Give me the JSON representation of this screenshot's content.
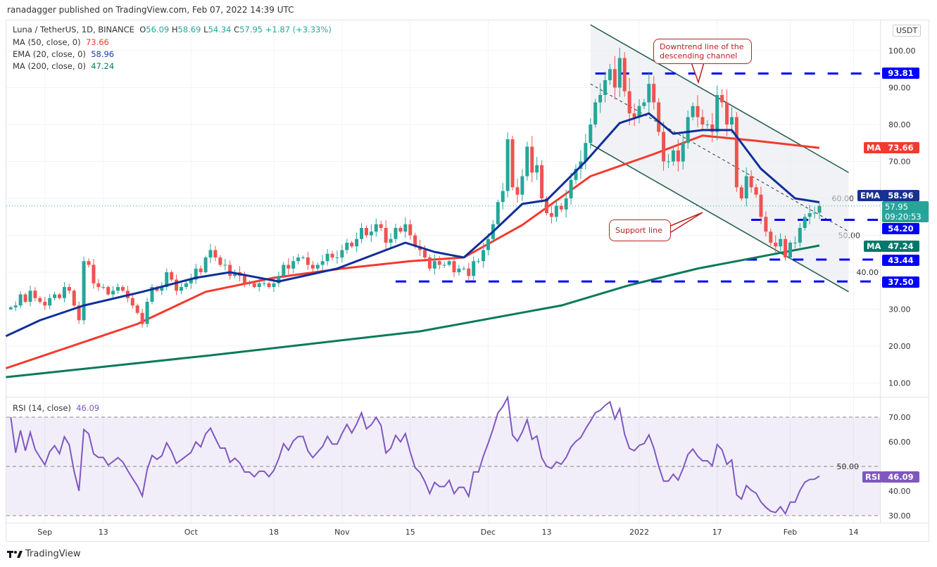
{
  "header": {
    "published": "ranadagger published on TradingView.com, Feb 07, 2022 14:39 UTC"
  },
  "legend": {
    "symbol": "Luna / TetherUS, 1D, BINANCE",
    "o_label": "O",
    "open": "56.09",
    "h_label": "H",
    "high": "58.69",
    "l_label": "L",
    "low": "54.34",
    "c_label": "C",
    "close": "57.95",
    "change": "+1.87 (+3.33%)",
    "ma50_label": "MA (50, close, 0)",
    "ma50_value": "73.66",
    "ema20_label": "EMA (20, close, 0)",
    "ema20_value": "58.96",
    "ma200_label": "MA (200, close, 0)",
    "ma200_value": "47.24",
    "rsi_label": "RSI (14, close)",
    "rsi_value": "46.09"
  },
  "currency_button": "USDT",
  "badges": {
    "level_93": "93.81",
    "ma50_tag": "MA",
    "ma50": "73.66",
    "ema_tag": "EMA",
    "ema": "58.96",
    "last": "57.95",
    "countdown": "09:20:53",
    "level_54": "54.20",
    "ma200_tag": "MA",
    "ma200": "47.24",
    "level_43": "43.44",
    "level_37": "37.50",
    "rsi_tag": "RSI",
    "rsi": "46.09"
  },
  "annotations": {
    "downtrend": "Downtrend line of the descending channel",
    "support": "Support line"
  },
  "footer": {
    "brand": "TradingView"
  },
  "colors": {
    "up": "#26a69a",
    "down": "#ef5350",
    "ema20": "#0d2f9a",
    "ma50": "#f23a2f",
    "ma200": "#0a7a5a",
    "rsi": "#7e57c2",
    "levels": "#0000ff"
  },
  "chart_data": {
    "type": "candlestick",
    "start_date": "2021-08-25",
    "price_axis": {
      "ticks": [
        "100.00",
        "90.00",
        "80.00",
        "70.00",
        "60.00",
        "50.00",
        "40.00",
        "30.00",
        "20.00",
        "10.00"
      ],
      "range": [
        5,
        108
      ],
      "scale": "linear"
    },
    "rsi_axis": {
      "ticks": [
        "70.00",
        "60.00",
        "50.00",
        "40.00",
        "30.00"
      ],
      "band": [
        30,
        70
      ],
      "midline": 50
    },
    "time_ticks": [
      [
        "Sep",
        "2021-09-01"
      ],
      [
        "13",
        "2021-09-13"
      ],
      [
        "Oct",
        "2021-10-01"
      ],
      [
        "18",
        "2021-10-18"
      ],
      [
        "Nov",
        "2021-11-01"
      ],
      [
        "15",
        "2021-11-15"
      ],
      [
        "Dec",
        "2021-12-01"
      ],
      [
        "13",
        "2021-12-13"
      ],
      [
        "2022",
        "2022-01-01"
      ],
      [
        "17",
        "2022-01-17"
      ],
      [
        "Feb",
        "2022-02-01"
      ],
      [
        "14",
        "2022-02-14"
      ]
    ],
    "closes": [
      30.5,
      31,
      34,
      32,
      35,
      33,
      32,
      31,
      33,
      34,
      33,
      36,
      35,
      31,
      27,
      43,
      42,
      37,
      36,
      36,
      34,
      35,
      36,
      35,
      33,
      31,
      29,
      26,
      32,
      36,
      35,
      36,
      40,
      38,
      35,
      36,
      37,
      38,
      41,
      40,
      44,
      46,
      44,
      42,
      42,
      39,
      40,
      39,
      37,
      37,
      36,
      37,
      37,
      36,
      37,
      39,
      42,
      41,
      43,
      44,
      44,
      42,
      41,
      42,
      43,
      45,
      44,
      44,
      46,
      48,
      47,
      49,
      52,
      50,
      51,
      53,
      52,
      48,
      49,
      52,
      51,
      53,
      50,
      47,
      46,
      44,
      41,
      43,
      42,
      42,
      43,
      40,
      41,
      41,
      39,
      43,
      43,
      46,
      49,
      53,
      59,
      62,
      76,
      63,
      61,
      66,
      74,
      67,
      69,
      60,
      56,
      55,
      58,
      57,
      60,
      65,
      68,
      70,
      75,
      80,
      86,
      88,
      92,
      95,
      90,
      98,
      89,
      83,
      82,
      85,
      86,
      91,
      86,
      78,
      70,
      70,
      73,
      70,
      75,
      82,
      85,
      82,
      80,
      80,
      78,
      88,
      86,
      80,
      82,
      63,
      60,
      66,
      63,
      61,
      55,
      51,
      48,
      47,
      49,
      44,
      48,
      48,
      52,
      55,
      56,
      56.09,
      57.95
    ],
    "last": {
      "open": 56.09,
      "high": 58.69,
      "low": 54.34,
      "close": 57.95
    },
    "ema20": [
      [
        "2021-08-24",
        22.7
      ],
      [
        "2021-08-31",
        27
      ],
      [
        "2021-09-09",
        31
      ],
      [
        "2021-09-21",
        34.7
      ],
      [
        "2021-10-02",
        38.5
      ],
      [
        "2021-10-09",
        40
      ],
      [
        "2021-10-19",
        37.5
      ],
      [
        "2021-10-31",
        41
      ],
      [
        "2021-11-14",
        48
      ],
      [
        "2021-11-20",
        45.5
      ],
      [
        "2021-11-26",
        44
      ],
      [
        "2021-12-02",
        51
      ],
      [
        "2021-12-08",
        58.5
      ],
      [
        "2021-12-13",
        59.5
      ],
      [
        "2021-12-21",
        70
      ],
      [
        "2021-12-28",
        80.4
      ],
      [
        "2022-01-03",
        83
      ],
      [
        "2022-01-08",
        77.5
      ],
      [
        "2022-01-14",
        78.5
      ],
      [
        "2022-01-20",
        78.5
      ],
      [
        "2022-01-26",
        68
      ],
      [
        "2022-02-02",
        60
      ],
      [
        "2022-02-07",
        58.96
      ]
    ],
    "ma50": [
      [
        "2021-08-24",
        14
      ],
      [
        "2021-09-20",
        26
      ],
      [
        "2021-10-04",
        34.7
      ],
      [
        "2021-10-18",
        38.5
      ],
      [
        "2021-11-01",
        41
      ],
      [
        "2021-11-15",
        43
      ],
      [
        "2021-11-26",
        44
      ],
      [
        "2021-12-08",
        52.8
      ],
      [
        "2021-12-22",
        66
      ],
      [
        "2022-01-04",
        72
      ],
      [
        "2022-01-14",
        77
      ],
      [
        "2022-01-25",
        75.6
      ],
      [
        "2022-02-07",
        73.66
      ]
    ],
    "ma200": [
      [
        "2021-08-24",
        11.6
      ],
      [
        "2021-10-05",
        17.5
      ],
      [
        "2021-11-17",
        24
      ],
      [
        "2021-12-16",
        31
      ],
      [
        "2021-12-30",
        36.5
      ],
      [
        "2022-01-13",
        41
      ],
      [
        "2022-02-07",
        47.24
      ]
    ],
    "channel": {
      "upper": [
        [
          "2021-12-22",
          107
        ],
        [
          "2022-02-13",
          67
        ]
      ],
      "lower": [
        [
          "2021-12-22",
          74.7
        ],
        [
          "2022-02-13",
          34.7
        ]
      ],
      "middle": [
        [
          "2021-12-22",
          91
        ],
        [
          "2022-02-13",
          51
        ]
      ]
    },
    "levels": [
      [
        "2021-12-23",
        93.81
      ],
      [
        "2022-01-24",
        54.2
      ],
      [
        "2022-01-23",
        43.44
      ],
      [
        "2021-11-12",
        37.5
      ]
    ],
    "rsi_last": 46.09
  }
}
